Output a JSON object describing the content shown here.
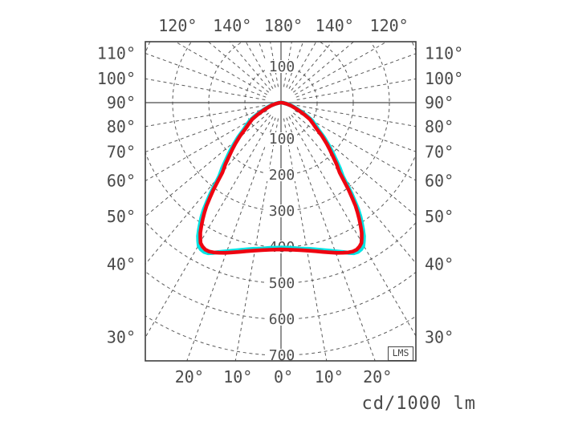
{
  "chart_data": {
    "type": "line",
    "subtype": "polar-photometric-luminaire-diagram",
    "unit_label": "cd/1000 lm",
    "badge": "LMS",
    "radial_axis": {
      "unit": "cd/1000 lm",
      "ring_step": 100,
      "radial_range": [
        0,
        700
      ],
      "ring_labels_below": [
        "100",
        "200",
        "300",
        "400",
        "500",
        "600",
        "700"
      ],
      "ring_label_above": "100"
    },
    "angular_axis": {
      "grid_step_deg": 10,
      "angular_range_deg": [
        0,
        180
      ],
      "side_labels": [
        {
          "deg": 110,
          "text": "110°"
        },
        {
          "deg": 100,
          "text": "100°"
        },
        {
          "deg": 90,
          "text": "90°"
        },
        {
          "deg": 80,
          "text": "80°"
        },
        {
          "deg": 70,
          "text": "70°"
        },
        {
          "deg": 60,
          "text": "60°"
        },
        {
          "deg": 50,
          "text": "50°"
        },
        {
          "deg": 40,
          "text": "40°"
        },
        {
          "deg": 30,
          "text": "30°"
        }
      ],
      "top_labels": [
        {
          "deg": 120,
          "side": -1,
          "text": "120°"
        },
        {
          "deg": 140,
          "side": -1,
          "text": "140°"
        },
        {
          "deg": 180,
          "side": 0,
          "text": "180°"
        },
        {
          "deg": 140,
          "side": 1,
          "text": "140°"
        },
        {
          "deg": 120,
          "side": 1,
          "text": "120°"
        }
      ],
      "bottom_labels": [
        {
          "deg": 20,
          "side": -1,
          "text": "20°"
        },
        {
          "deg": 10,
          "side": -1,
          "text": "10°"
        },
        {
          "deg": 0,
          "side": 0,
          "text": "0°"
        },
        {
          "deg": 10,
          "side": 1,
          "text": "10°"
        },
        {
          "deg": 20,
          "side": 1,
          "text": "20°"
        }
      ]
    },
    "series": [
      {
        "name": "curve-cyan",
        "color": "#00e4e4",
        "stroke_width": 5,
        "points": [
          [
            90,
            0
          ],
          [
            84,
            7
          ],
          [
            78,
            18
          ],
          [
            73,
            32
          ],
          [
            69,
            46
          ],
          [
            66,
            60
          ],
          [
            63,
            78
          ],
          [
            60,
            99
          ],
          [
            57,
            113
          ],
          [
            54,
            128
          ],
          [
            51,
            153
          ],
          [
            48,
            179
          ],
          [
            46,
            198
          ],
          [
            44,
            218
          ],
          [
            42,
            242
          ],
          [
            40,
            265
          ],
          [
            38.8,
            291
          ],
          [
            37.8,
            318
          ],
          [
            36.8,
            341
          ],
          [
            35.8,
            365
          ],
          [
            34.8,
            385
          ],
          [
            33.8,
            402
          ],
          [
            32.8,
            419
          ],
          [
            31.8,
            435
          ],
          [
            30.8,
            447
          ],
          [
            29.8,
            458
          ],
          [
            28.6,
            463
          ],
          [
            27.2,
            465
          ],
          [
            25.8,
            463
          ],
          [
            24.2,
            456
          ],
          [
            22.4,
            448
          ],
          [
            20.4,
            440
          ],
          [
            18.2,
            432
          ],
          [
            15.8,
            425
          ],
          [
            13.2,
            418
          ],
          [
            10.4,
            412
          ],
          [
            7.4,
            408
          ],
          [
            4.4,
            404
          ],
          [
            0,
            402
          ]
        ]
      },
      {
        "name": "curve-red",
        "color": "#ee0511",
        "stroke_width": 4.6,
        "points": [
          [
            90,
            0
          ],
          [
            84,
            6
          ],
          [
            78,
            16
          ],
          [
            73,
            29
          ],
          [
            69,
            42
          ],
          [
            66,
            55
          ],
          [
            63,
            72
          ],
          [
            60,
            92
          ],
          [
            57,
            105
          ],
          [
            54,
            120
          ],
          [
            51,
            145
          ],
          [
            48,
            170
          ],
          [
            46,
            188
          ],
          [
            44,
            207
          ],
          [
            42,
            230
          ],
          [
            40,
            252
          ],
          [
            38.8,
            278
          ],
          [
            37.8,
            305
          ],
          [
            36.8,
            328
          ],
          [
            35.8,
            352
          ],
          [
            34.8,
            372
          ],
          [
            33.8,
            390
          ],
          [
            32.8,
            407
          ],
          [
            31.8,
            424
          ],
          [
            30.8,
            436
          ],
          [
            29.8,
            448
          ],
          [
            28.6,
            454
          ],
          [
            27.2,
            458
          ],
          [
            25.8,
            458
          ],
          [
            24.2,
            455
          ],
          [
            22.4,
            450
          ],
          [
            20.4,
            444
          ],
          [
            18.2,
            437
          ],
          [
            15.8,
            430
          ],
          [
            13.2,
            423
          ],
          [
            10.4,
            417
          ],
          [
            7.4,
            412
          ],
          [
            4.4,
            409
          ],
          [
            0,
            407
          ]
        ]
      }
    ],
    "colors": {
      "grid": "#5a5a5a",
      "axis": "#4a4a4a",
      "border": "#3f3f3f",
      "label": "#4a4a4a",
      "ring_label": "#4f4f4f",
      "background": "#ffffff"
    },
    "grid": "dashed"
  }
}
